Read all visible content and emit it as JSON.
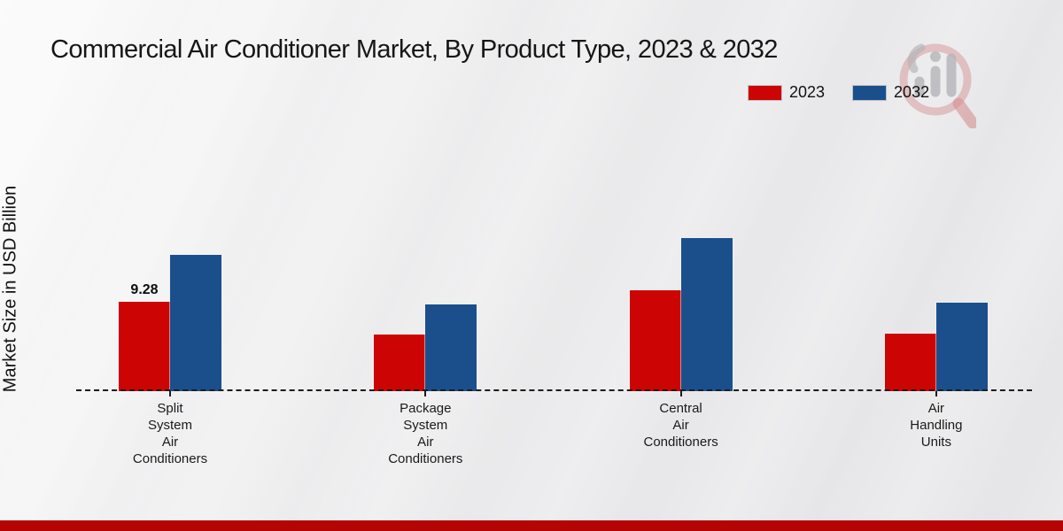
{
  "page": {
    "title": "Commercial Air Conditioner Market, By Product Type, 2023 & 2032",
    "footer_band_color": "#b50404"
  },
  "watermark": {
    "name": "market-research-future-logo"
  },
  "chart_data": {
    "type": "bar",
    "title": "Commercial Air Conditioner Market, By Product Type, 2023 & 2032",
    "ylabel": "Market Size in USD Billion",
    "xlabel": "",
    "categories": [
      "Split System Air Conditioners",
      "Package System Air Conditioners",
      "Central Air Conditioners",
      "Air Handling Units"
    ],
    "series": [
      {
        "name": "2023",
        "color": "#cc0404",
        "values": [
          9.28,
          5.9,
          10.5,
          6.0
        ]
      },
      {
        "name": "2032",
        "color": "#1b4f8c",
        "values": [
          14.2,
          9.0,
          15.9,
          9.2
        ]
      }
    ],
    "data_labels": [
      {
        "series": "2023",
        "category_index": 0,
        "text": "9.28"
      }
    ],
    "ylim": [
      0,
      18
    ],
    "grid": false,
    "y_axis_ticks_visible": false,
    "baseline_style": "dashed",
    "legend_position": "top-right"
  }
}
